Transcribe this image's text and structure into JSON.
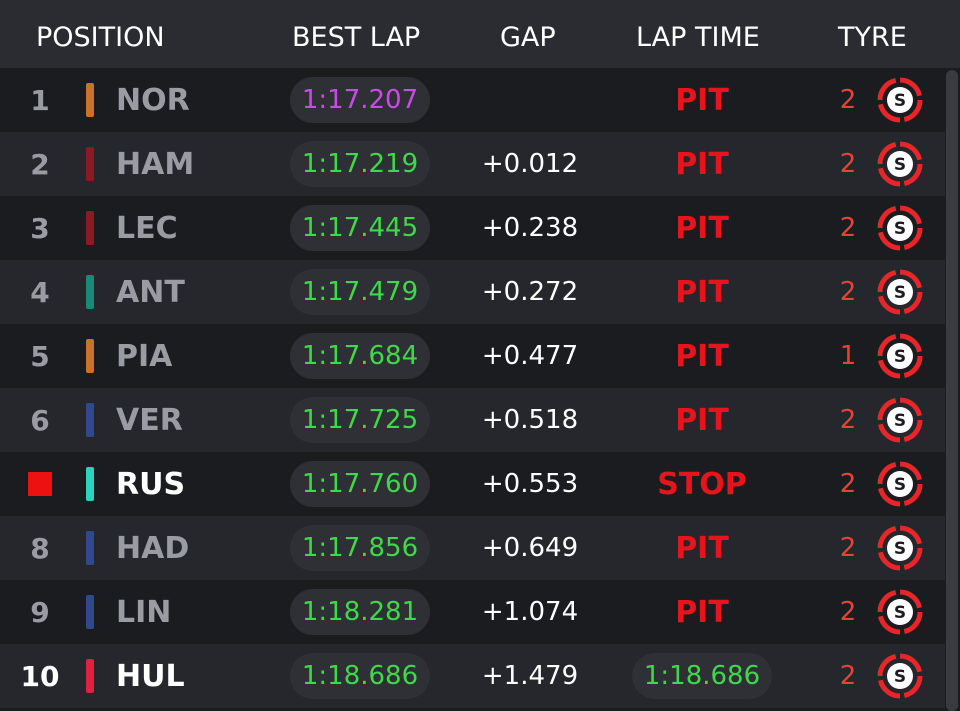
{
  "header": {
    "position": "POSITION",
    "best_lap": "BEST LAP",
    "gap": "GAP",
    "lap_time": "LAP TIME",
    "tyre": "TYRE"
  },
  "rows": [
    {
      "position": "1",
      "code": "NOR",
      "team_color": "#c8722a",
      "best_lap": "1:17.207",
      "best_lap_color": "#c94be6",
      "gap": null,
      "lap_time": "PIT",
      "tyre_laps": 2,
      "compound": "S",
      "text_color": "#9a9ca3"
    },
    {
      "position": "2",
      "code": "HAM",
      "team_color": "#8b1a22",
      "best_lap": "1:17.219",
      "best_lap_color": "#3fd84a",
      "gap": "+0.012",
      "lap_time": "PIT",
      "tyre_laps": 2,
      "compound": "S",
      "text_color": "#9a9ca3"
    },
    {
      "position": "3",
      "code": "LEC",
      "team_color": "#8b1a22",
      "best_lap": "1:17.445",
      "best_lap_color": "#3fd84a",
      "gap": "+0.238",
      "lap_time": "PIT",
      "tyre_laps": 2,
      "compound": "S",
      "text_color": "#9a9ca3"
    },
    {
      "position": "4",
      "code": "ANT",
      "team_color": "#1a8a78",
      "best_lap": "1:17.479",
      "best_lap_color": "#3fd84a",
      "gap": "+0.272",
      "lap_time": "PIT",
      "tyre_laps": 2,
      "compound": "S",
      "text_color": "#9a9ca3"
    },
    {
      "position": "5",
      "code": "PIA",
      "team_color": "#c8722a",
      "best_lap": "1:17.684",
      "best_lap_color": "#3fd84a",
      "gap": "+0.477",
      "lap_time": "PIT",
      "tyre_laps": 1,
      "compound": "S",
      "text_color": "#9a9ca3"
    },
    {
      "position": "6",
      "code": "VER",
      "team_color": "#2f4a8c",
      "best_lap": "1:17.725",
      "best_lap_color": "#3fd84a",
      "gap": "+0.518",
      "lap_time": "PIT",
      "tyre_laps": 2,
      "compound": "S",
      "text_color": "#9a9ca3"
    },
    {
      "position": null,
      "code": "RUS",
      "team_color": "#2ad3c0",
      "best_lap": "1:17.760",
      "best_lap_color": "#3fd84a",
      "gap": "+0.553",
      "lap_time": "STOP",
      "tyre_laps": 2,
      "compound": "S",
      "text_color": "#ffffff"
    },
    {
      "position": "8",
      "code": "HAD",
      "team_color": "#2f4a8c",
      "best_lap": "1:17.856",
      "best_lap_color": "#3fd84a",
      "gap": "+0.649",
      "lap_time": "PIT",
      "tyre_laps": 2,
      "compound": "S",
      "text_color": "#9a9ca3"
    },
    {
      "position": "9",
      "code": "LIN",
      "team_color": "#2f4a8c",
      "best_lap": "1:18.281",
      "best_lap_color": "#3fd84a",
      "gap": "+1.074",
      "lap_time": "PIT",
      "tyre_laps": 2,
      "compound": "S",
      "text_color": "#9a9ca3"
    },
    {
      "position": "10",
      "code": "HUL",
      "team_color": "#e0213f",
      "best_lap": "1:18.686",
      "best_lap_color": "#3fd84a",
      "gap": "+1.479",
      "lap_time": "1:18.686",
      "tyre_laps": 2,
      "compound": "S",
      "text_color": "#ffffff"
    }
  ]
}
